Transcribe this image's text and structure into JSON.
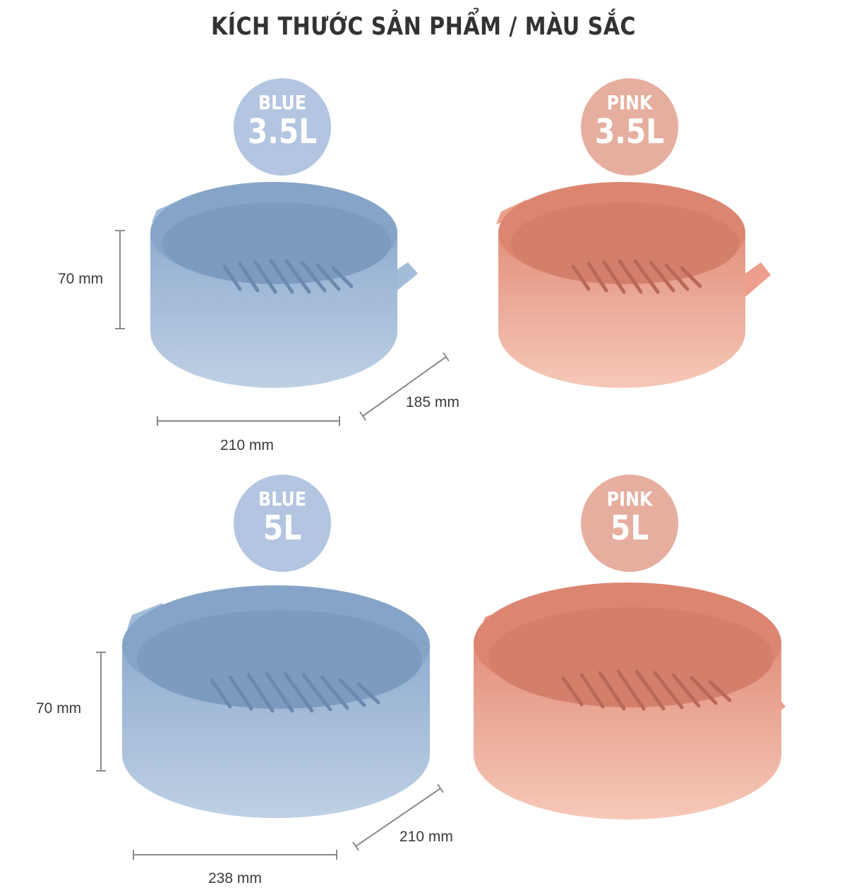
{
  "title": "KÍCH THƯỚC SẢN PHẨM / MÀU SẮC",
  "colors": {
    "blue": "#8faed0",
    "pink": "#e59480",
    "blue_badge": "#b3c5e0",
    "pink_badge": "#e6ae9f",
    "text": "#333333"
  },
  "products": [
    {
      "color": "BLUE",
      "size": "3.5L",
      "height": "70 mm",
      "width": "210 mm",
      "depth": "185 mm"
    },
    {
      "color": "PINK",
      "size": "3.5L"
    },
    {
      "color": "BLUE",
      "size": "5L",
      "height": "70 mm",
      "width": "238 mm",
      "depth": "210 mm"
    },
    {
      "color": "PINK",
      "size": "5L"
    }
  ]
}
